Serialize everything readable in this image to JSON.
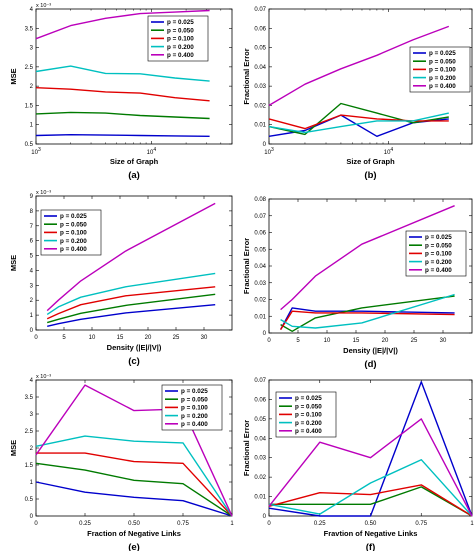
{
  "colors": {
    "p0.025": "#0000cc",
    "p0.050": "#007a00",
    "p0.100": "#e00000",
    "p0.200": "#00c0c0",
    "p0.400": "#bb00bb"
  },
  "chart_data": [
    {
      "type": "line",
      "caption": "(a)",
      "xlabel": "Size of Graph",
      "ylabel": "MSE",
      "xscale": "log",
      "xlim": [
        1000,
        50000
      ],
      "ylim": [
        0.5,
        4
      ],
      "y_multiplier": "x 10⁻³",
      "xticks": [
        1000,
        10000
      ],
      "xtick_labels": [
        {
          "base": "10",
          "exp": "3"
        },
        {
          "base": "10",
          "exp": "4"
        }
      ],
      "yticks": [
        0.5,
        1,
        1.5,
        2,
        2.5,
        3,
        3.5,
        4
      ],
      "ytick_labels": [
        "0.5",
        "1",
        "1.5",
        "2",
        "2.5",
        "3",
        "3.5",
        "4"
      ],
      "legend": "top-right",
      "x": [
        1000,
        2000,
        4000,
        8000,
        16000,
        32000
      ],
      "series": [
        {
          "name": "p = 0.025",
          "values": [
            0.72,
            0.74,
            0.73,
            0.72,
            0.71,
            0.7
          ]
        },
        {
          "name": "p = 0.050",
          "values": [
            1.28,
            1.32,
            1.3,
            1.24,
            1.2,
            1.16
          ]
        },
        {
          "name": "p = 0.100",
          "values": [
            1.96,
            1.92,
            1.85,
            1.82,
            1.7,
            1.62
          ]
        },
        {
          "name": "p = 0.200",
          "values": [
            2.38,
            2.52,
            2.33,
            2.32,
            2.21,
            2.13
          ]
        },
        {
          "name": "p = 0.400",
          "values": [
            3.23,
            3.57,
            3.76,
            3.88,
            3.92,
            3.96
          ]
        }
      ]
    },
    {
      "type": "line",
      "caption": "(b)",
      "xlabel": "Size of Graph",
      "ylabel": "Fractional Error",
      "xscale": "log",
      "xlim": [
        1000,
        50000
      ],
      "ylim": [
        0,
        0.07
      ],
      "xticks": [
        1000,
        10000
      ],
      "xtick_labels": [
        {
          "base": "10",
          "exp": "3"
        },
        {
          "base": "10",
          "exp": "4"
        }
      ],
      "yticks": [
        0,
        0.01,
        0.02,
        0.03,
        0.04,
        0.05,
        0.06,
        0.07
      ],
      "ytick_labels": [
        "0",
        "0.01",
        "0.02",
        "0.03",
        "0.04",
        "0.05",
        "0.06",
        "0.07"
      ],
      "legend": "center-right",
      "x": [
        1000,
        2000,
        4000,
        8000,
        16000,
        32000
      ],
      "series": [
        {
          "name": "p = 0.025",
          "values": [
            0.004,
            0.007,
            0.015,
            0.004,
            0.011,
            0.013
          ]
        },
        {
          "name": "p = 0.050",
          "values": [
            0.009,
            0.005,
            0.021,
            0.016,
            0.011,
            0.014
          ]
        },
        {
          "name": "p = 0.100",
          "values": [
            0.013,
            0.008,
            0.015,
            0.013,
            0.012,
            0.012
          ]
        },
        {
          "name": "p = 0.200",
          "values": [
            0.009,
            0.006,
            0.009,
            0.012,
            0.012,
            0.016
          ]
        },
        {
          "name": "p = 0.400",
          "values": [
            0.02,
            0.031,
            0.039,
            0.046,
            0.054,
            0.061
          ]
        }
      ]
    },
    {
      "type": "line",
      "caption": "(c)",
      "xlabel": "Density (|E|/|V|)",
      "ylabel": "MSE",
      "xscale": "linear",
      "xlim": [
        0,
        35
      ],
      "ylim": [
        0,
        9
      ],
      "y_multiplier": "x 10⁻³",
      "xticks": [
        0,
        5,
        10,
        15,
        20,
        25,
        30
      ],
      "xtick_labels": [
        "0",
        "5",
        "10",
        "15",
        "20",
        "25",
        "30"
      ],
      "yticks": [
        0,
        1,
        2,
        3,
        4,
        5,
        6,
        7,
        8,
        9
      ],
      "ytick_labels": [
        "0",
        "1",
        "2",
        "3",
        "4",
        "5",
        "6",
        "7",
        "8",
        "9"
      ],
      "legend": "top-left",
      "x": [
        2,
        4,
        8,
        16,
        32
      ],
      "series": [
        {
          "name": "p = 0.025",
          "values": [
            0.25,
            0.42,
            0.72,
            1.15,
            1.7
          ]
        },
        {
          "name": "p = 0.050",
          "values": [
            0.5,
            0.72,
            1.12,
            1.65,
            2.4
          ]
        },
        {
          "name": "p = 0.100",
          "values": [
            0.75,
            1.1,
            1.7,
            2.3,
            2.9
          ]
        },
        {
          "name": "p = 0.200",
          "values": [
            1.05,
            1.55,
            2.2,
            2.9,
            3.8
          ]
        },
        {
          "name": "p = 0.400",
          "values": [
            1.3,
            2.0,
            3.3,
            5.3,
            8.5
          ]
        }
      ]
    },
    {
      "type": "line",
      "caption": "(d)",
      "xlabel": "Density (|E|/|V|)",
      "ylabel": "Fractional Error",
      "xscale": "linear",
      "xlim": [
        0,
        35
      ],
      "ylim": [
        0,
        0.08
      ],
      "xticks": [
        0,
        5,
        10,
        15,
        20,
        25,
        30
      ],
      "xtick_labels": [
        "0",
        "5",
        "10",
        "15",
        "20",
        "25",
        "30"
      ],
      "yticks": [
        0,
        0.01,
        0.02,
        0.03,
        0.04,
        0.05,
        0.06,
        0.07,
        0.08
      ],
      "ytick_labels": [
        "0",
        "0.01",
        "0.02",
        "0.03",
        "0.04",
        "0.05",
        "0.06",
        "0.07",
        "0.08"
      ],
      "legend": "center-right",
      "x": [
        2,
        4,
        8,
        16,
        32
      ],
      "series": [
        {
          "name": "p = 0.025",
          "values": [
            0.002,
            0.015,
            0.013,
            0.013,
            0.012
          ]
        },
        {
          "name": "p = 0.050",
          "values": [
            0.005,
            0.001,
            0.009,
            0.015,
            0.022
          ]
        },
        {
          "name": "p = 0.100",
          "values": [
            0.002,
            0.013,
            0.012,
            0.012,
            0.011
          ]
        },
        {
          "name": "p = 0.200",
          "values": [
            0.008,
            0.004,
            0.003,
            0.006,
            0.023
          ]
        },
        {
          "name": "p = 0.400",
          "values": [
            0.014,
            0.02,
            0.034,
            0.053,
            0.076
          ]
        }
      ]
    },
    {
      "type": "line",
      "caption": "(e)",
      "xlabel": "Fraction of Negative Links",
      "ylabel": "MSE",
      "xscale": "linear",
      "xlim": [
        0,
        1
      ],
      "ylim": [
        0,
        4
      ],
      "y_multiplier": "x 10⁻³",
      "xticks": [
        0,
        0.25,
        0.5,
        0.75,
        1
      ],
      "xtick_labels": [
        "0",
        "0.25",
        "0.50",
        "0.75",
        "1"
      ],
      "yticks": [
        0,
        0.5,
        1,
        1.5,
        2,
        2.5,
        3,
        3.5,
        4
      ],
      "ytick_labels": [
        "0",
        "0.5",
        "1",
        "1.5",
        "2",
        "2.5",
        "3",
        "3.5",
        "4"
      ],
      "legend": "top-right",
      "x": [
        0,
        0.25,
        0.5,
        0.75,
        1
      ],
      "series": [
        {
          "name": "p = 0.025",
          "values": [
            1.0,
            0.7,
            0.55,
            0.45,
            0.0
          ]
        },
        {
          "name": "p = 0.050",
          "values": [
            1.55,
            1.35,
            1.05,
            0.95,
            0.0
          ]
        },
        {
          "name": "p = 0.100",
          "values": [
            1.85,
            1.85,
            1.6,
            1.55,
            0.0
          ]
        },
        {
          "name": "p = 0.200",
          "values": [
            2.05,
            2.35,
            2.2,
            2.15,
            0.0
          ]
        },
        {
          "name": "p = 0.400",
          "values": [
            1.8,
            3.85,
            3.1,
            3.15,
            0.0
          ]
        }
      ]
    },
    {
      "type": "line",
      "caption": "(f)",
      "xlabel": "Fravtion of Negative Links",
      "ylabel": "Fractional Error",
      "xscale": "linear",
      "xlim": [
        0,
        1
      ],
      "ylim": [
        0,
        0.07
      ],
      "xticks": [
        0,
        0.25,
        0.5,
        0.75,
        1
      ],
      "xtick_labels": [
        "0",
        "0.25",
        "0.50",
        "0.75",
        "1"
      ],
      "yticks": [
        0,
        0.01,
        0.02,
        0.03,
        0.04,
        0.05,
        0.06,
        0.07
      ],
      "ytick_labels": [
        "0",
        "0.01",
        "0.02",
        "0.03",
        "0.04",
        "0.05",
        "0.06",
        "0.07"
      ],
      "legend": "top-left",
      "x": [
        0,
        0.25,
        0.5,
        0.75,
        1
      ],
      "series": [
        {
          "name": "p = 0.025",
          "values": [
            0.004,
            0.0,
            0.0,
            0.069,
            0.0
          ]
        },
        {
          "name": "p = 0.050",
          "values": [
            0.006,
            0.006,
            0.006,
            0.015,
            0.0
          ]
        },
        {
          "name": "p = 0.100",
          "values": [
            0.005,
            0.012,
            0.011,
            0.016,
            0.0
          ]
        },
        {
          "name": "p = 0.200",
          "values": [
            0.006,
            0.001,
            0.017,
            0.029,
            0.0
          ]
        },
        {
          "name": "p = 0.400",
          "values": [
            0.005,
            0.038,
            0.03,
            0.05,
            0.0
          ]
        }
      ]
    }
  ]
}
